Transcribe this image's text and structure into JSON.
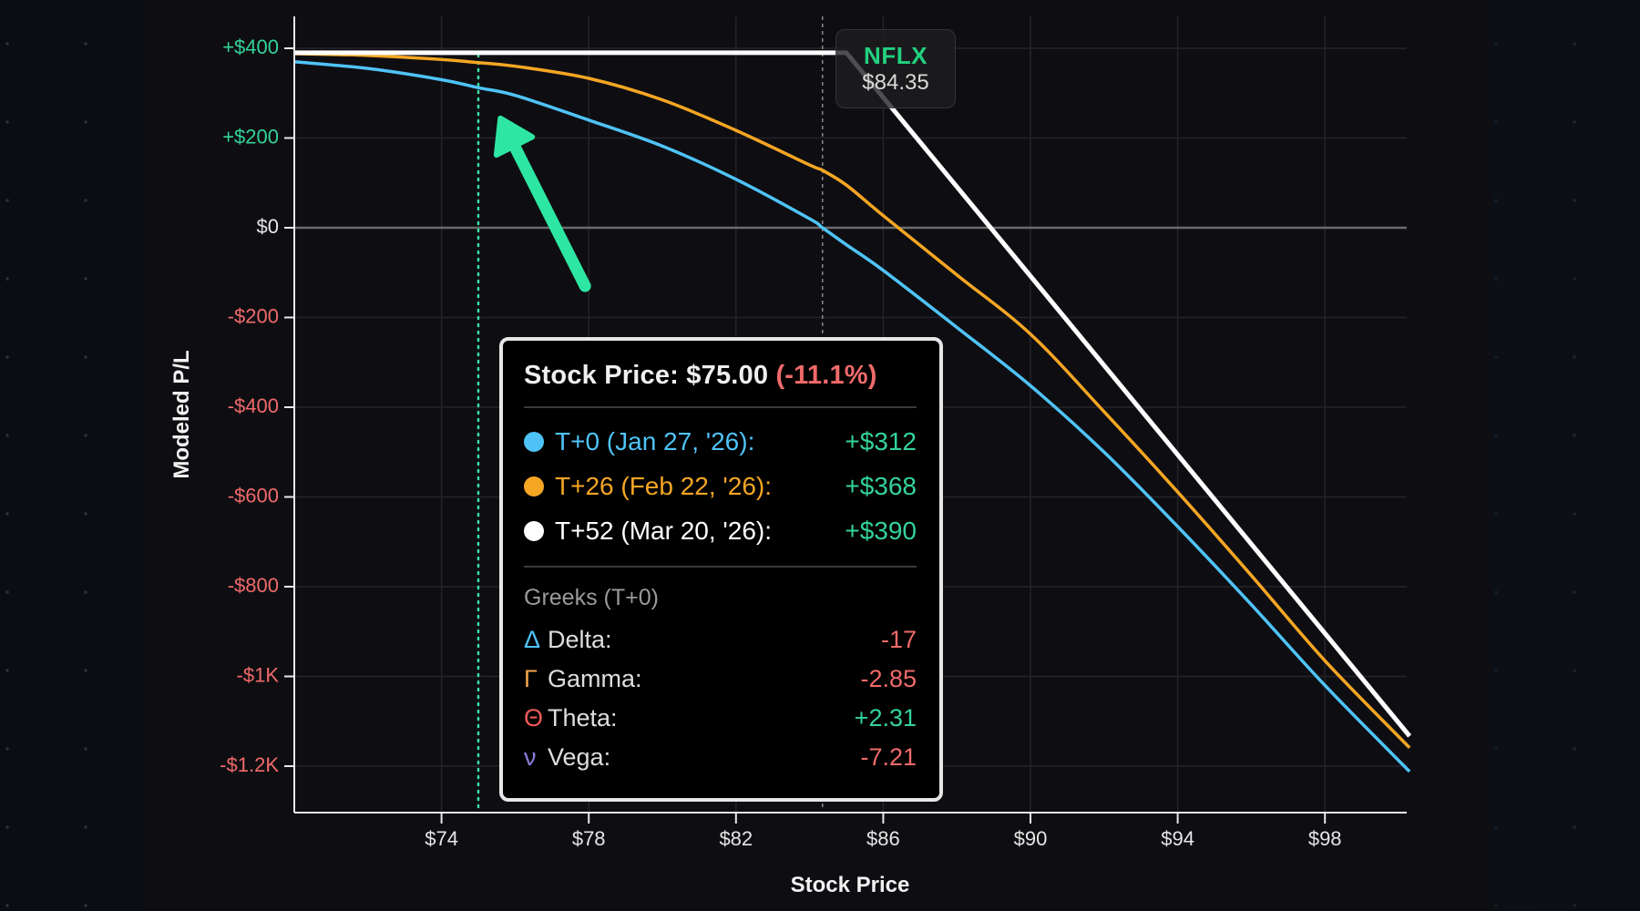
{
  "ticker_badge": {
    "ticker": "NFLX",
    "price": "$84.35"
  },
  "axes": {
    "ylabel": "Modeled P/L",
    "xlabel": "Stock Price",
    "y_ticks": [
      "+$400",
      "+$200",
      "$0",
      "-$200",
      "-$400",
      "-$600",
      "-$800",
      "-$1K",
      "-$1.2K"
    ],
    "x_ticks": [
      "$74",
      "$78",
      "$82",
      "$86",
      "$90",
      "$94",
      "$98"
    ]
  },
  "tooltip": {
    "title_prefix": "Stock Price: $75.00",
    "title_change": "(-11.1%)",
    "series": [
      {
        "label": "T+0 (Jan 27, '26):",
        "value": "+$312",
        "color": "#4fc3f7"
      },
      {
        "label": "T+26 (Feb 22, '26):",
        "value": "+$368",
        "color": "#f5a623"
      },
      {
        "label": "T+52 (Mar 20, '26):",
        "value": "+$390",
        "color": "#ffffff"
      }
    ],
    "greeks_header": "Greeks (T+0)",
    "greeks": [
      {
        "symbol": "Δ",
        "name": "Delta:",
        "value": "-17",
        "symbol_color": "#4fc3f7",
        "sign": "neg"
      },
      {
        "symbol": "Γ",
        "name": "Gamma:",
        "value": "-2.85",
        "symbol_color": "#f5a34b",
        "sign": "neg"
      },
      {
        "symbol": "Θ",
        "name": "Theta:",
        "value": "+2.31",
        "symbol_color": "#f05a5a",
        "sign": "pos"
      },
      {
        "symbol": "ν",
        "name": "Vega:",
        "value": "-7.21",
        "symbol_color": "#8b7fe0",
        "sign": "neg"
      }
    ]
  },
  "colors": {
    "positive": "#34d399",
    "negative": "#f06a6a",
    "t0": "#4fc3f7",
    "t26": "#f5a623",
    "t52": "#ffffff",
    "annotation_arrow": "#2ee6a4",
    "hover_line": "#3ee0a6"
  },
  "chart_data": {
    "type": "line",
    "title": "",
    "xlabel": "Stock Price",
    "ylabel": "Modeled P/L",
    "xlim": [
      70,
      100.3
    ],
    "ylim": [
      -1370,
      460
    ],
    "x_ticks": [
      74,
      78,
      82,
      86,
      90,
      94,
      98
    ],
    "y_ticks": [
      400,
      200,
      0,
      -200,
      -400,
      -600,
      -800,
      -1000,
      -1200
    ],
    "grid": true,
    "current_price": 84.35,
    "hover_price": 75.0,
    "x": [
      70,
      72,
      74,
      75,
      76,
      78,
      80,
      82,
      84,
      84.35,
      85,
      86,
      88,
      90,
      92,
      94,
      96,
      98,
      100.3
    ],
    "series": [
      {
        "name": "T+0 (Jan 27, '26)",
        "color": "#4fc3f7",
        "values": [
          370,
          355,
          330,
          312,
          295,
          240,
          182,
          108,
          20,
          0,
          -38,
          -95,
          -222,
          -352,
          -500,
          -666,
          -840,
          -1020,
          -1212
        ]
      },
      {
        "name": "T+26 (Feb 22, '26)",
        "color": "#f5a623",
        "values": [
          388,
          384,
          375,
          368,
          360,
          333,
          285,
          217,
          140,
          128,
          95,
          27,
          -105,
          -237,
          -410,
          -589,
          -775,
          -965,
          -1159
        ]
      },
      {
        "name": "T+52 (Mar 20, '26)",
        "color": "#ffffff",
        "values": [
          390,
          390,
          390,
          390,
          390,
          390,
          390,
          390,
          390,
          390,
          390,
          290,
          90,
          -187,
          -360,
          -548,
          -740,
          -935,
          -1133
        ]
      }
    ],
    "annotations": [
      {
        "type": "arrow",
        "from": [
          77.9,
          -130
        ],
        "to": [
          75.6,
          244
        ],
        "color": "#2ee6a4"
      },
      {
        "type": "vline",
        "x": 75.0,
        "style": "dotted",
        "color": "#3ee0a6"
      },
      {
        "type": "vline",
        "x": 84.35,
        "style": "dashed",
        "color": "#9a9a9a"
      },
      {
        "type": "label",
        "x": 84.35,
        "text": "NFLX $84.35"
      }
    ]
  }
}
